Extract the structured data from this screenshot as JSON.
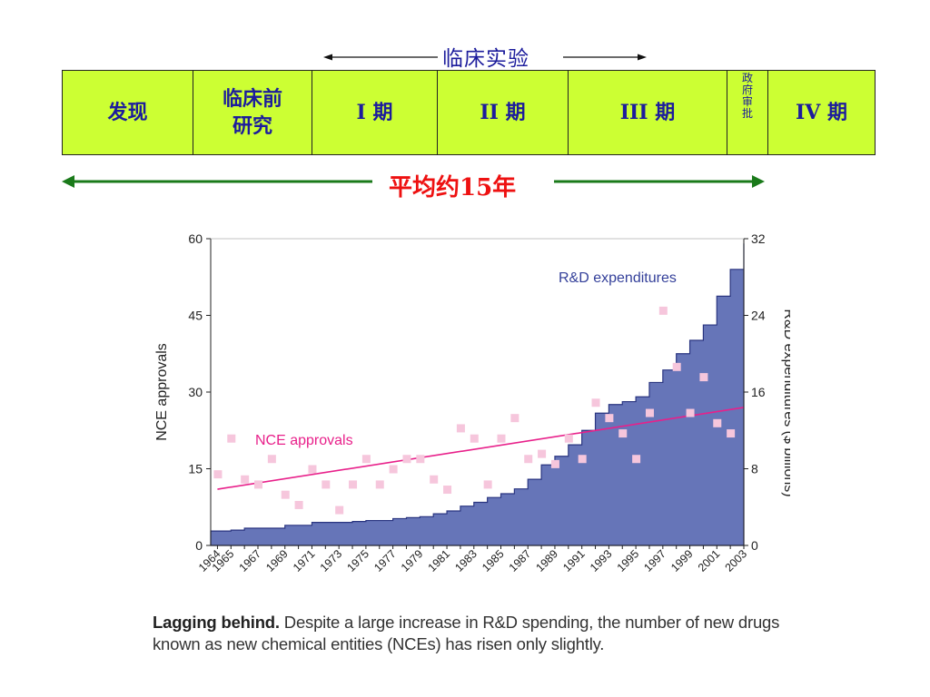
{
  "header": {
    "clinical_trials_label": "临床实验",
    "average_duration_label": "平均约15年"
  },
  "stages": [
    {
      "label": "发现"
    },
    {
      "label": "临床前研究",
      "lines": [
        "临床前",
        "研究"
      ]
    },
    {
      "label": "I 期"
    },
    {
      "label": "II 期"
    },
    {
      "label": "III 期"
    },
    {
      "label": "政府审批",
      "chars": [
        "政",
        "府",
        "审",
        "批"
      ]
    },
    {
      "label": "IV 期"
    }
  ],
  "colors": {
    "phase_fill": "#ccff33",
    "phase_text": "#1c1c9c",
    "duration_text": "#ee1111",
    "duration_arrow": "#1a7a1a",
    "area_fill": "#6675b8",
    "area_edge": "#2a3580",
    "line": "#e8208a",
    "points": "#f6c6dc"
  },
  "chart_data": {
    "type": "area",
    "overlay_types": [
      "line",
      "scatter"
    ],
    "ylabel_left": "NCE approvals",
    "ylabel_right": "R&D expenditures ($ billions)",
    "ylim_left": [
      0,
      60
    ],
    "ylim_right": [
      0,
      32
    ],
    "left_ticks": [
      0,
      15,
      30,
      45,
      60
    ],
    "right_ticks": [
      0,
      8,
      16,
      24,
      32
    ],
    "x_tick_labels": [
      "1964",
      "1965",
      "1967",
      "1969",
      "1971",
      "1973",
      "1975",
      "1977",
      "1979",
      "1981",
      "1983",
      "1985",
      "1987",
      "1989",
      "1991",
      "1993",
      "1995",
      "1997",
      "1999",
      "2001",
      "2003"
    ],
    "annotations": {
      "area_label": "R&D expenditures",
      "line_label": "NCE approvals"
    },
    "series": [
      {
        "name": "R&D expenditures",
        "type": "area",
        "axis": "right",
        "x": [
          1964,
          1965,
          1966,
          1967,
          1968,
          1969,
          1970,
          1971,
          1972,
          1973,
          1974,
          1975,
          1976,
          1977,
          1978,
          1979,
          1980,
          1981,
          1982,
          1983,
          1984,
          1985,
          1986,
          1987,
          1988,
          1989,
          1990,
          1991,
          1992,
          1993,
          1994,
          1995,
          1996,
          1997,
          1998,
          1999,
          2000,
          2001,
          2002,
          2003
        ],
        "values": [
          1.5,
          1.6,
          1.8,
          1.8,
          1.8,
          2.1,
          2.1,
          2.4,
          2.4,
          2.4,
          2.5,
          2.6,
          2.6,
          2.8,
          2.9,
          3.0,
          3.3,
          3.6,
          4.1,
          4.5,
          5.0,
          5.4,
          5.9,
          6.9,
          8.4,
          9.3,
          10.5,
          12.0,
          13.8,
          14.7,
          15.0,
          15.5,
          17.0,
          18.3,
          20.0,
          21.4,
          23.0,
          26.0,
          28.8,
          31.5
        ]
      },
      {
        "name": "NCE approvals",
        "type": "line",
        "axis": "left",
        "x": [
          1964,
          2003
        ],
        "values": [
          11,
          27
        ]
      },
      {
        "name": "NCE approvals",
        "type": "scatter",
        "axis": "left",
        "points": [
          [
            1964,
            14
          ],
          [
            1965,
            21
          ],
          [
            1966,
            13
          ],
          [
            1967,
            12
          ],
          [
            1968,
            17
          ],
          [
            1969,
            10
          ],
          [
            1970,
            8
          ],
          [
            1971,
            15
          ],
          [
            1972,
            12
          ],
          [
            1973,
            7
          ],
          [
            1974,
            12
          ],
          [
            1975,
            17
          ],
          [
            1976,
            12
          ],
          [
            1977,
            15
          ],
          [
            1978,
            17
          ],
          [
            1979,
            17
          ],
          [
            1980,
            13
          ],
          [
            1981,
            11
          ],
          [
            1982,
            23
          ],
          [
            1983,
            21
          ],
          [
            1984,
            12
          ],
          [
            1985,
            21
          ],
          [
            1986,
            25
          ],
          [
            1987,
            17
          ],
          [
            1988,
            18
          ],
          [
            1989,
            16
          ],
          [
            1990,
            21
          ],
          [
            1991,
            17
          ],
          [
            1992,
            28
          ],
          [
            1993,
            25
          ],
          [
            1994,
            22
          ],
          [
            1995,
            17
          ],
          [
            1996,
            26
          ],
          [
            1997,
            46
          ],
          [
            1998,
            35
          ],
          [
            1999,
            26
          ],
          [
            2000,
            33
          ],
          [
            2001,
            24
          ],
          [
            2002,
            22
          ]
        ]
      }
    ]
  },
  "caption": {
    "bold": "Lagging behind.",
    "text": " Despite a large increase in R&D spending, the number of new drugs known as new chemical entities (NCEs) has risen only slightly."
  }
}
